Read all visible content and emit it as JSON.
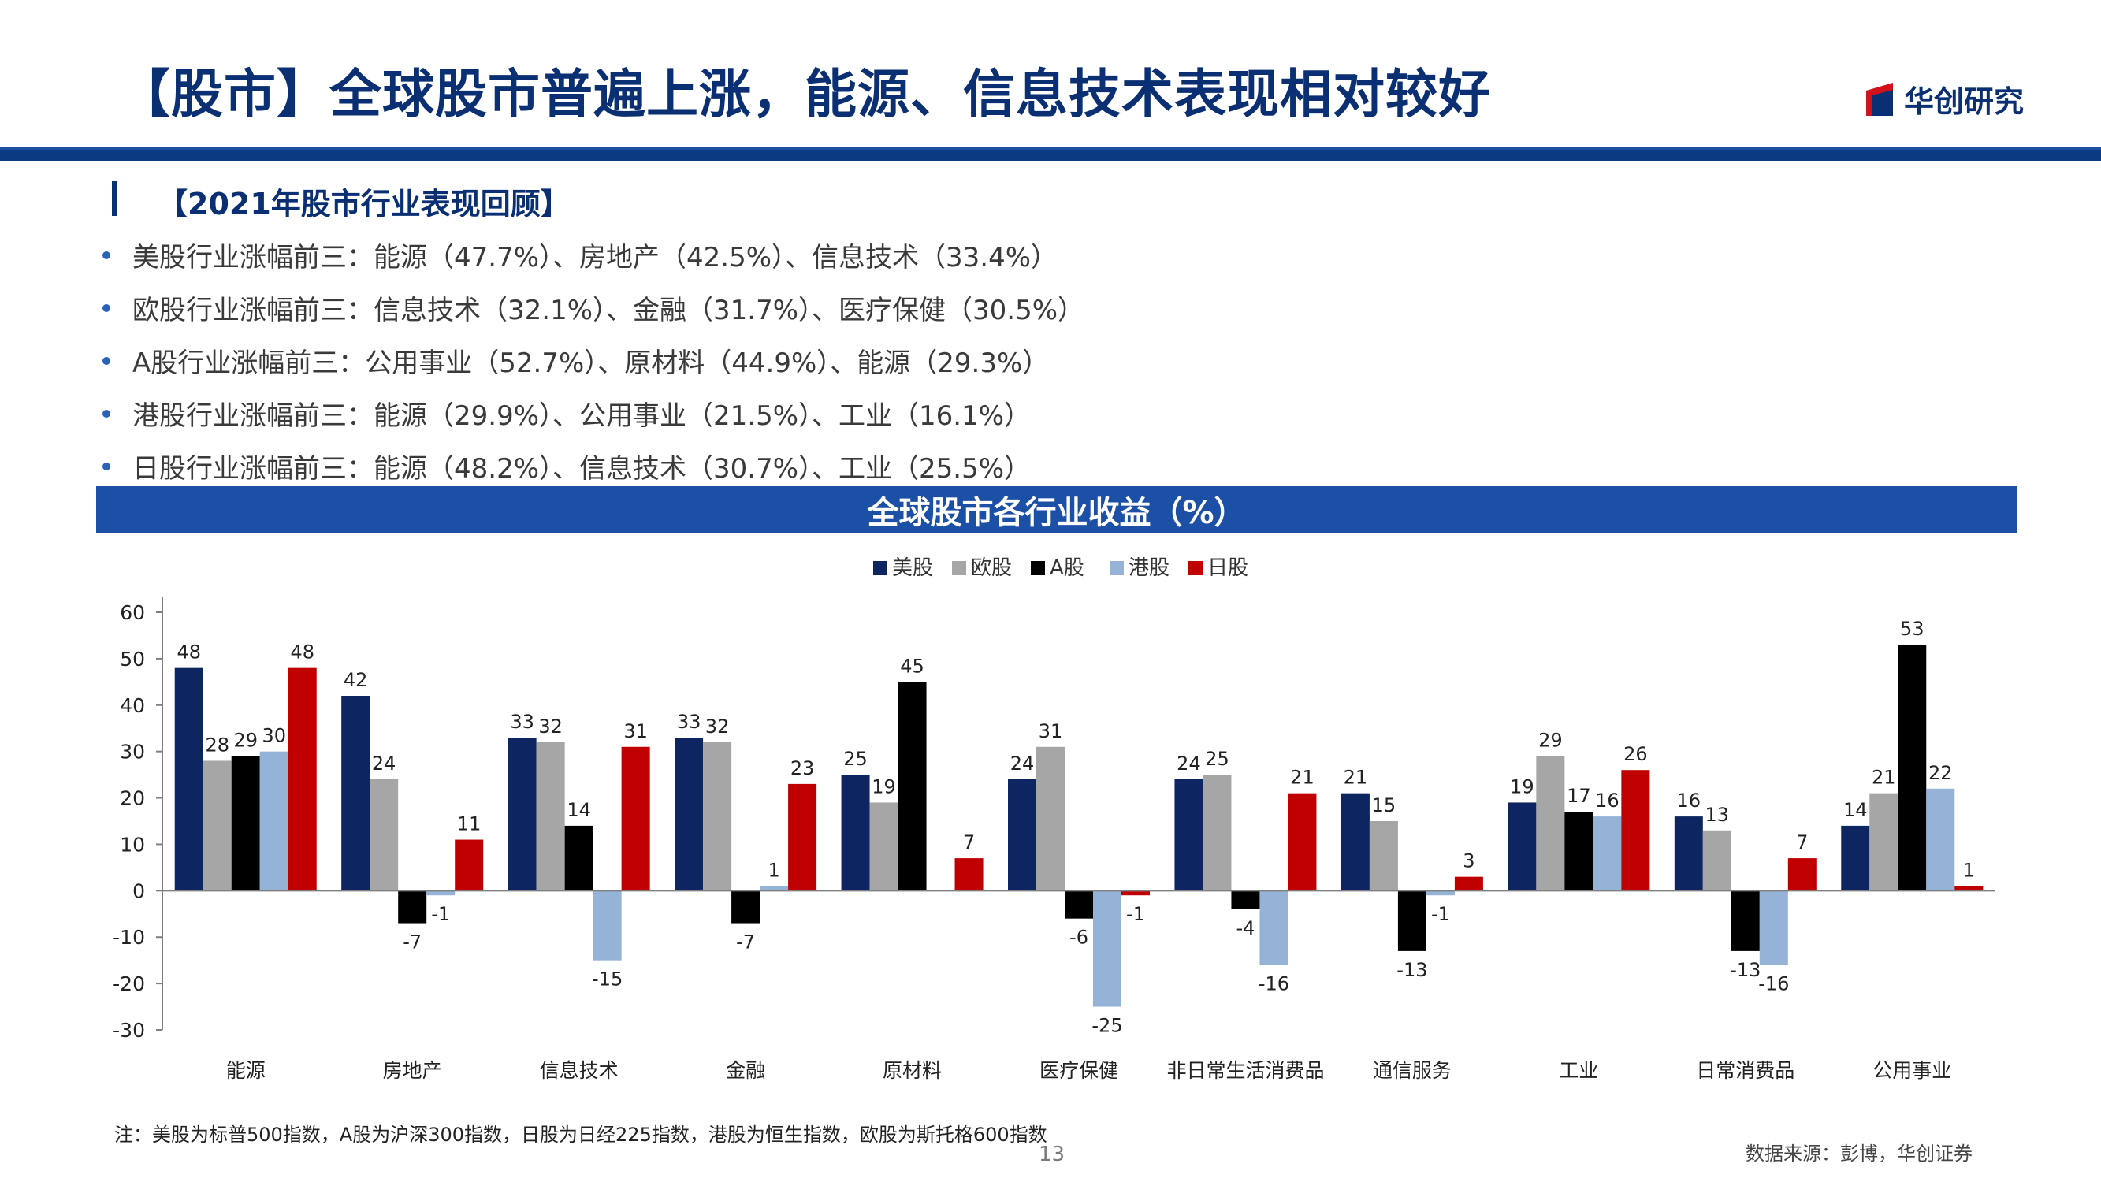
{
  "header": {
    "title": "【股市】全球股市普遍上涨，能源、信息技术表现相对较好",
    "logo_text": "华创研究",
    "logo_icon": "huachuang-logo-icon",
    "accent_color": "#0b2f73",
    "rule_color": "#0b3a82"
  },
  "section": {
    "heading": "【2021年股市行业表现回顾】",
    "bullets": [
      "美股行业涨幅前三：能源（47.7%）、房地产（42.5%）、信息技术（33.4%）",
      "欧股行业涨幅前三：信息技术（32.1%）、金融（31.7%）、医疗保健（30.5%）",
      "A股行业涨幅前三：公用事业（52.7%）、原材料（44.9%）、能源（29.3%）",
      "港股行业涨幅前三：能源（29.9%）、公用事业（21.5%）、工业（16.1%）",
      "日股行业涨幅前三：能源（48.2%）、信息技术（30.7%）、工业（25.5%）"
    ]
  },
  "chart_data": {
    "type": "bar",
    "title": "全球股市各行业收益（%）",
    "categories": [
      "能源",
      "房地产",
      "信息技术",
      "金融",
      "原材料",
      "医疗保健",
      "非日常生活消费品",
      "通信服务",
      "工业",
      "日常消费品",
      "公用事业"
    ],
    "series": [
      {
        "name": "美股",
        "color": "#0d2561",
        "values": [
          48,
          42,
          33,
          33,
          25,
          24,
          24,
          21,
          19,
          16,
          14
        ],
        "labels": [
          "48",
          "42",
          "33",
          "33",
          "25",
          "24",
          "24",
          "21",
          "19",
          "16",
          "14"
        ]
      },
      {
        "name": "欧股",
        "color": "#a6a6a6",
        "values": [
          28,
          24,
          32,
          32,
          19,
          31,
          25,
          15,
          29,
          13,
          21
        ],
        "labels": [
          "28",
          "24",
          "32",
          "32",
          "19",
          "31",
          "25",
          "15",
          "29",
          "13",
          "21"
        ]
      },
      {
        "name": "A股",
        "color": "#000000",
        "values": [
          29,
          -7,
          14,
          -7,
          45,
          -6,
          -4,
          -13,
          17,
          -13,
          53
        ],
        "labels": [
          "29",
          "-7",
          "14",
          "-7",
          "45",
          "-6",
          "-4",
          "-13",
          "17",
          "-13",
          "53"
        ]
      },
      {
        "name": "港股",
        "color": "#95b3d7",
        "values": [
          30,
          -1,
          -15,
          1,
          0,
          -25,
          -16,
          -1,
          16,
          -16,
          22
        ],
        "labels": [
          "30",
          "-1",
          "-15",
          "1",
          "",
          "-25",
          "-16",
          "-1",
          "16",
          "-16",
          "22"
        ]
      },
      {
        "name": "日股",
        "color": "#c00000",
        "values": [
          48,
          11,
          31,
          23,
          7,
          -1,
          21,
          3,
          26,
          7,
          1
        ],
        "labels": [
          "48",
          "11",
          "31",
          "23",
          "7",
          "-1",
          "21",
          "3",
          "26",
          "7",
          "1"
        ]
      }
    ],
    "ylim": [
      -30,
      60
    ],
    "yticks": [
      60,
      50,
      40,
      30,
      20,
      10,
      0,
      -10,
      -20,
      -30
    ],
    "legend_position": "top-center",
    "grid": false
  },
  "footer": {
    "note": "注：美股为标普500指数，A股为沪深300指数，日股为日经225指数，港股为恒生指数，欧股为斯托格600指数",
    "page_number": "13",
    "source": "数据来源：彭博，华创证券"
  }
}
